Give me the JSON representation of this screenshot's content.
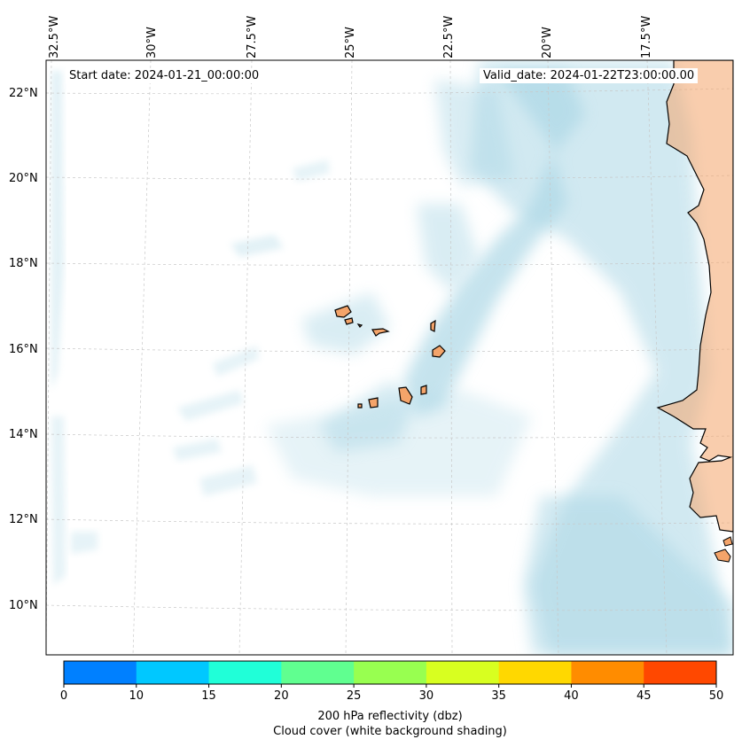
{
  "map": {
    "start_date_label": "Start date: 2024-01-21_00:00:00",
    "valid_date_label": "Valid_date: 2024-01-22T23:00:00.00",
    "lon_labels": [
      "32.5°W",
      "30°W",
      "27.5°W",
      "25°W",
      "22.5°W",
      "20°W",
      "17.5°W"
    ],
    "lat_labels": [
      "22°N",
      "20°N",
      "18°N",
      "16°N",
      "14°N",
      "12°N",
      "10°N"
    ],
    "colors": {
      "cloud": "#add8e6",
      "land": "#f4a46a",
      "coast": "#000000",
      "grid": "#c8c8c8"
    }
  },
  "colorbar": {
    "ticks": [
      "0",
      "10",
      "15",
      "20",
      "25",
      "30",
      "35",
      "40",
      "45",
      "50"
    ],
    "colors": [
      "#0080ff",
      "#00c8ff",
      "#20ffd8",
      "#60ff90",
      "#98ff50",
      "#d8ff20",
      "#ffd800",
      "#ff8c00",
      "#ff4800"
    ],
    "title": "200 hPa reflectivity (dbz)",
    "subtitle": "Cloud cover (white background shading)"
  }
}
